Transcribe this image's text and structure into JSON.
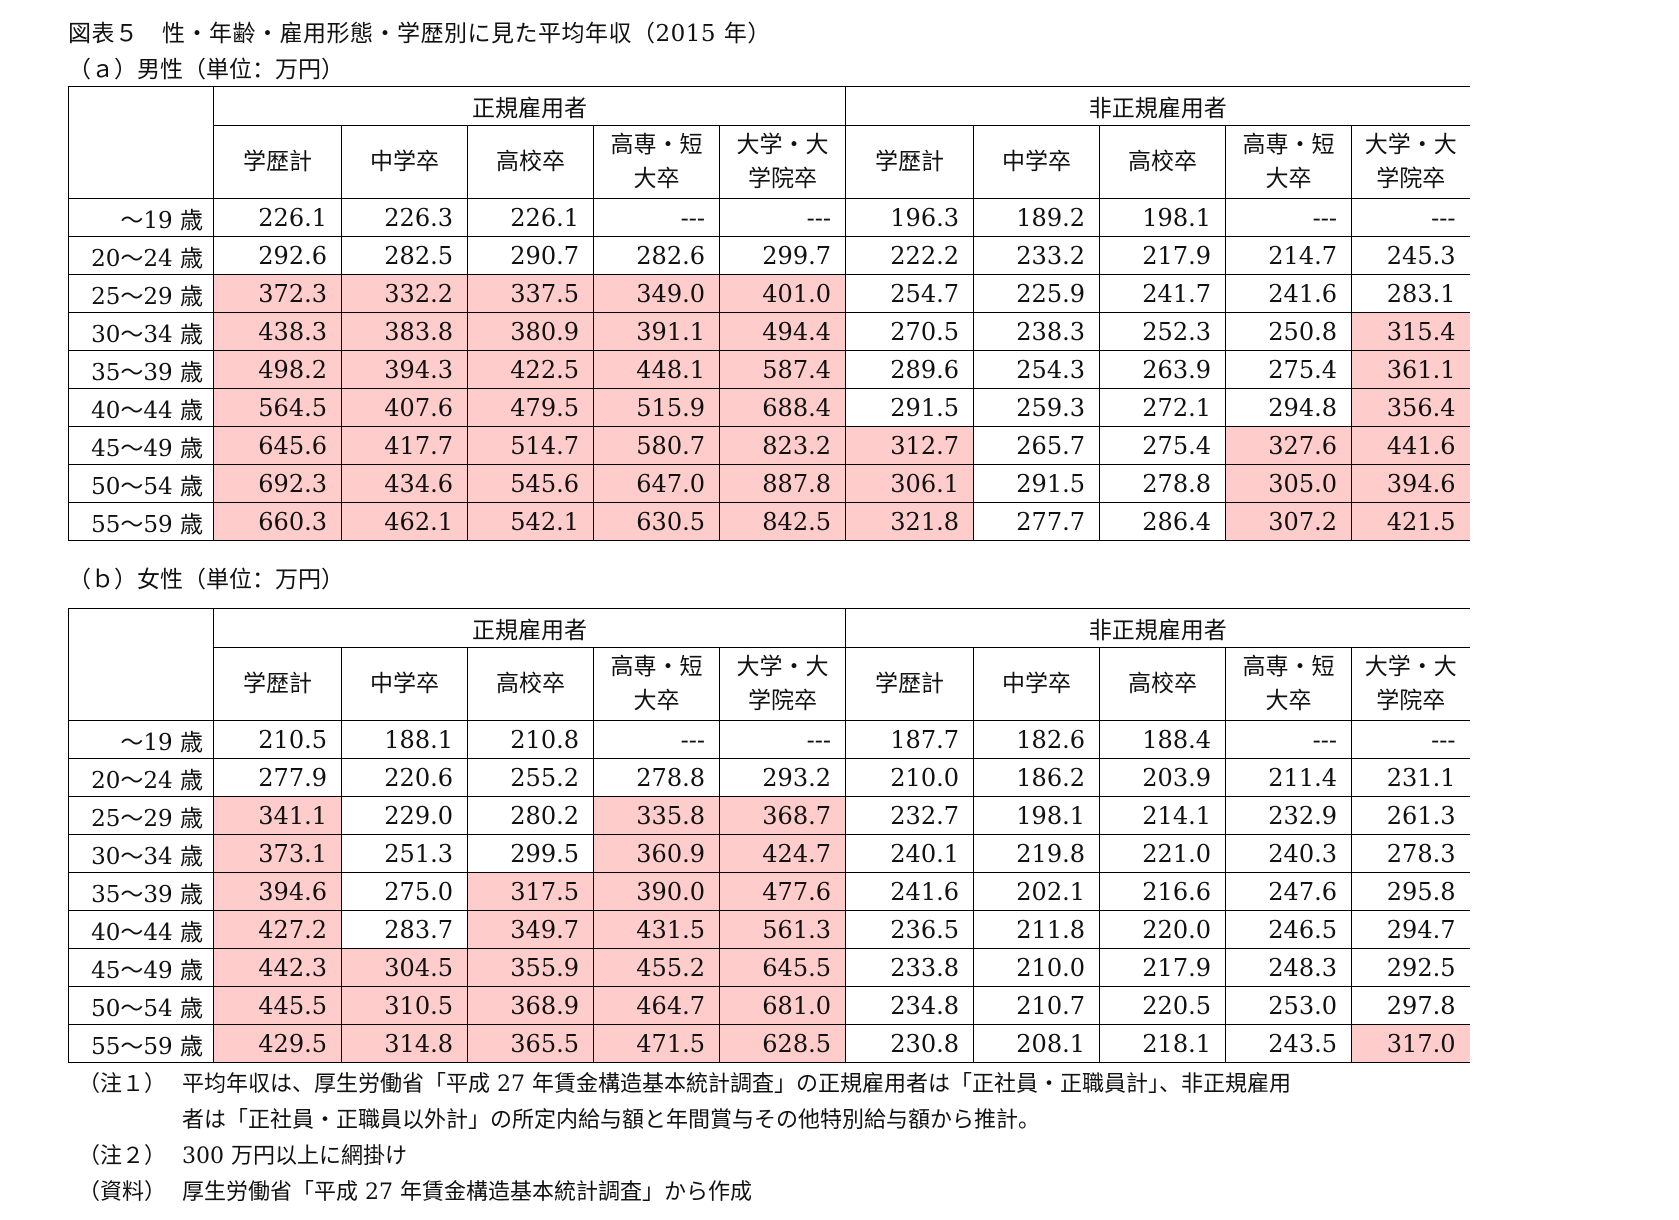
{
  "title": "図表５　性・年齢・雇用形態・学歴別に見た平均年収（2015 年）",
  "highlight_color": "#ffcccc",
  "column_groups": [
    "正規雇用者",
    "非正規雇用者"
  ],
  "columns": [
    "学歴計",
    "中学卒",
    "高校卒",
    "高専・短\n大卒",
    "大学・大\n学院卒",
    "学歴計",
    "中学卒",
    "高校卒",
    "高専・短\n大卒",
    "大学・大\n学院卒"
  ],
  "tables": [
    {
      "subtitle": "（ａ）男性（単位：万円）",
      "rows": [
        {
          "age": "～19 歳",
          "values": [
            "226.1",
            "226.3",
            "226.1",
            "---",
            "---",
            "196.3",
            "189.2",
            "198.1",
            "---",
            "---"
          ],
          "highlight": [
            0,
            0,
            0,
            0,
            0,
            0,
            0,
            0,
            0,
            0
          ]
        },
        {
          "age": "20～24 歳",
          "values": [
            "292.6",
            "282.5",
            "290.7",
            "282.6",
            "299.7",
            "222.2",
            "233.2",
            "217.9",
            "214.7",
            "245.3"
          ],
          "highlight": [
            0,
            0,
            0,
            0,
            0,
            0,
            0,
            0,
            0,
            0
          ]
        },
        {
          "age": "25～29 歳",
          "values": [
            "372.3",
            "332.2",
            "337.5",
            "349.0",
            "401.0",
            "254.7",
            "225.9",
            "241.7",
            "241.6",
            "283.1"
          ],
          "highlight": [
            1,
            1,
            1,
            1,
            1,
            0,
            0,
            0,
            0,
            0
          ]
        },
        {
          "age": "30～34 歳",
          "values": [
            "438.3",
            "383.8",
            "380.9",
            "391.1",
            "494.4",
            "270.5",
            "238.3",
            "252.3",
            "250.8",
            "315.4"
          ],
          "highlight": [
            1,
            1,
            1,
            1,
            1,
            0,
            0,
            0,
            0,
            1
          ]
        },
        {
          "age": "35～39 歳",
          "values": [
            "498.2",
            "394.3",
            "422.5",
            "448.1",
            "587.4",
            "289.6",
            "254.3",
            "263.9",
            "275.4",
            "361.1"
          ],
          "highlight": [
            1,
            1,
            1,
            1,
            1,
            0,
            0,
            0,
            0,
            1
          ]
        },
        {
          "age": "40～44 歳",
          "values": [
            "564.5",
            "407.6",
            "479.5",
            "515.9",
            "688.4",
            "291.5",
            "259.3",
            "272.1",
            "294.8",
            "356.4"
          ],
          "highlight": [
            1,
            1,
            1,
            1,
            1,
            0,
            0,
            0,
            0,
            1
          ]
        },
        {
          "age": "45～49 歳",
          "values": [
            "645.6",
            "417.7",
            "514.7",
            "580.7",
            "823.2",
            "312.7",
            "265.7",
            "275.4",
            "327.6",
            "441.6"
          ],
          "highlight": [
            1,
            1,
            1,
            1,
            1,
            1,
            0,
            0,
            1,
            1
          ]
        },
        {
          "age": "50～54 歳",
          "values": [
            "692.3",
            "434.6",
            "545.6",
            "647.0",
            "887.8",
            "306.1",
            "291.5",
            "278.8",
            "305.0",
            "394.6"
          ],
          "highlight": [
            1,
            1,
            1,
            1,
            1,
            1,
            0,
            0,
            1,
            1
          ]
        },
        {
          "age": "55～59 歳",
          "values": [
            "660.3",
            "462.1",
            "542.1",
            "630.5",
            "842.5",
            "321.8",
            "277.7",
            "286.4",
            "307.2",
            "421.5"
          ],
          "highlight": [
            1,
            1,
            1,
            1,
            1,
            1,
            0,
            0,
            1,
            1
          ]
        }
      ]
    },
    {
      "subtitle": "（ｂ）女性（単位：万円）",
      "rows": [
        {
          "age": "～19 歳",
          "values": [
            "210.5",
            "188.1",
            "210.8",
            "---",
            "---",
            "187.7",
            "182.6",
            "188.4",
            "---",
            "---"
          ],
          "highlight": [
            0,
            0,
            0,
            0,
            0,
            0,
            0,
            0,
            0,
            0
          ]
        },
        {
          "age": "20～24 歳",
          "values": [
            "277.9",
            "220.6",
            "255.2",
            "278.8",
            "293.2",
            "210.0",
            "186.2",
            "203.9",
            "211.4",
            "231.1"
          ],
          "highlight": [
            0,
            0,
            0,
            0,
            0,
            0,
            0,
            0,
            0,
            0
          ]
        },
        {
          "age": "25～29 歳",
          "values": [
            "341.1",
            "229.0",
            "280.2",
            "335.8",
            "368.7",
            "232.7",
            "198.1",
            "214.1",
            "232.9",
            "261.3"
          ],
          "highlight": [
            1,
            0,
            0,
            1,
            1,
            0,
            0,
            0,
            0,
            0
          ]
        },
        {
          "age": "30～34 歳",
          "values": [
            "373.1",
            "251.3",
            "299.5",
            "360.9",
            "424.7",
            "240.1",
            "219.8",
            "221.0",
            "240.3",
            "278.3"
          ],
          "highlight": [
            1,
            0,
            0,
            1,
            1,
            0,
            0,
            0,
            0,
            0
          ]
        },
        {
          "age": "35～39 歳",
          "values": [
            "394.6",
            "275.0",
            "317.5",
            "390.0",
            "477.6",
            "241.6",
            "202.1",
            "216.6",
            "247.6",
            "295.8"
          ],
          "highlight": [
            1,
            0,
            1,
            1,
            1,
            0,
            0,
            0,
            0,
            0
          ]
        },
        {
          "age": "40～44 歳",
          "values": [
            "427.2",
            "283.7",
            "349.7",
            "431.5",
            "561.3",
            "236.5",
            "211.8",
            "220.0",
            "246.5",
            "294.7"
          ],
          "highlight": [
            1,
            0,
            1,
            1,
            1,
            0,
            0,
            0,
            0,
            0
          ]
        },
        {
          "age": "45～49 歳",
          "values": [
            "442.3",
            "304.5",
            "355.9",
            "455.2",
            "645.5",
            "233.8",
            "210.0",
            "217.9",
            "248.3",
            "292.5"
          ],
          "highlight": [
            1,
            1,
            1,
            1,
            1,
            0,
            0,
            0,
            0,
            0
          ]
        },
        {
          "age": "50～54 歳",
          "values": [
            "445.5",
            "310.5",
            "368.9",
            "464.7",
            "681.0",
            "234.8",
            "210.7",
            "220.5",
            "253.0",
            "297.8"
          ],
          "highlight": [
            1,
            1,
            1,
            1,
            1,
            0,
            0,
            0,
            0,
            0
          ]
        },
        {
          "age": "55～59 歳",
          "values": [
            "429.5",
            "314.8",
            "365.5",
            "471.5",
            "628.5",
            "230.8",
            "208.1",
            "218.1",
            "243.5",
            "317.0"
          ],
          "highlight": [
            1,
            1,
            1,
            1,
            1,
            0,
            0,
            0,
            0,
            1
          ]
        }
      ]
    }
  ],
  "notes": [
    {
      "label": "（注１）",
      "lines": [
        "平均年収は、厚生労働省「平成 27 年賃金構造基本統計調査」の正規雇用者は「正社員・正職員計」、非正規雇用",
        "者は「正社員・正職員以外計」の所定内給与額と年間賞与その他特別給与額から推計。"
      ]
    },
    {
      "label": "（注２）",
      "lines": [
        "300 万円以上に網掛け"
      ]
    },
    {
      "label": "（資料）",
      "lines": [
        "厚生労働省「平成 27 年賃金構造基本統計調査」から作成"
      ]
    }
  ]
}
